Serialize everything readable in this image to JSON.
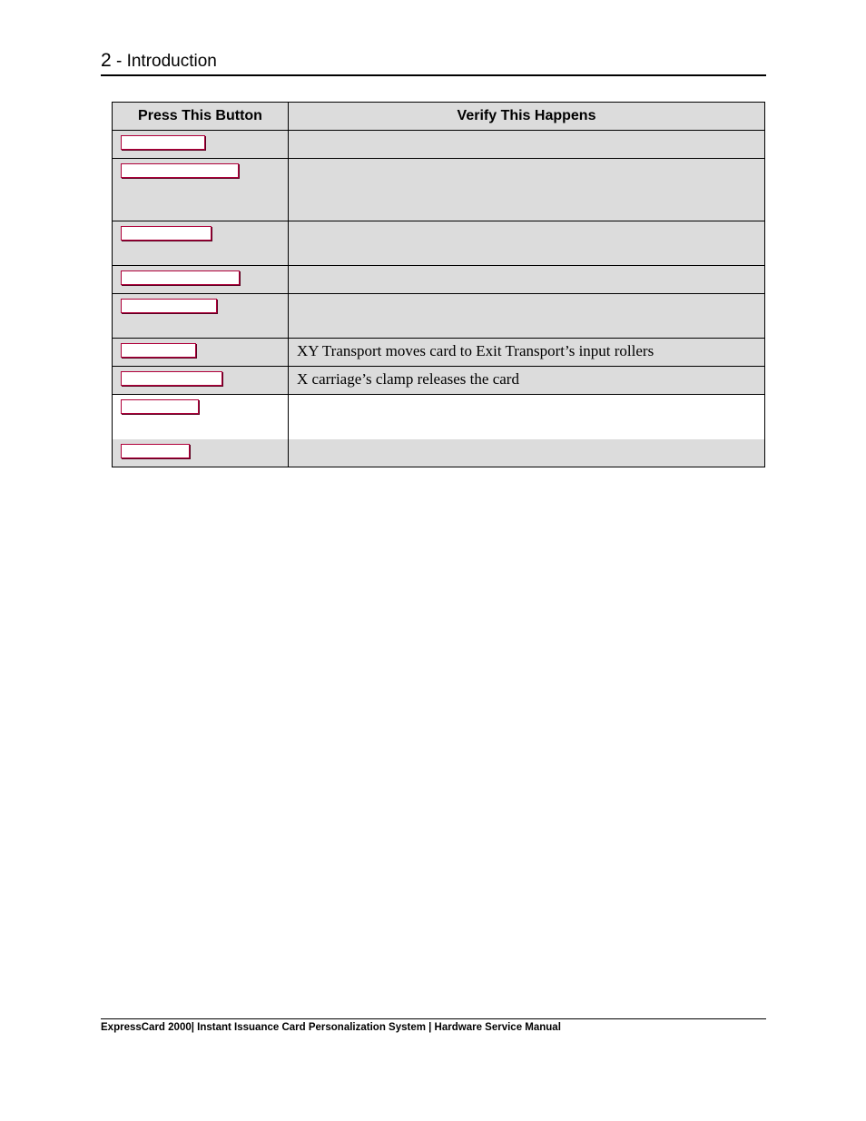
{
  "header": {
    "chapter_number": "2",
    "chapter_title": " - Introduction"
  },
  "table": {
    "columns": [
      "Press This Button",
      "Verify This Happens"
    ],
    "rows": [
      {
        "description": ""
      },
      {
        "description": ""
      },
      {
        "description": ""
      },
      {
        "description": ""
      },
      {
        "description": ""
      },
      {
        "description": "XY Transport moves card to Exit Transport’s input rollers"
      },
      {
        "description": "X carriage’s clamp releases the card"
      },
      {
        "description": ""
      },
      {
        "description": ""
      }
    ]
  },
  "footer": {
    "text": "ExpressCard 2000| Instant Issuance Card Personalization System | Hardware Service Manual"
  }
}
